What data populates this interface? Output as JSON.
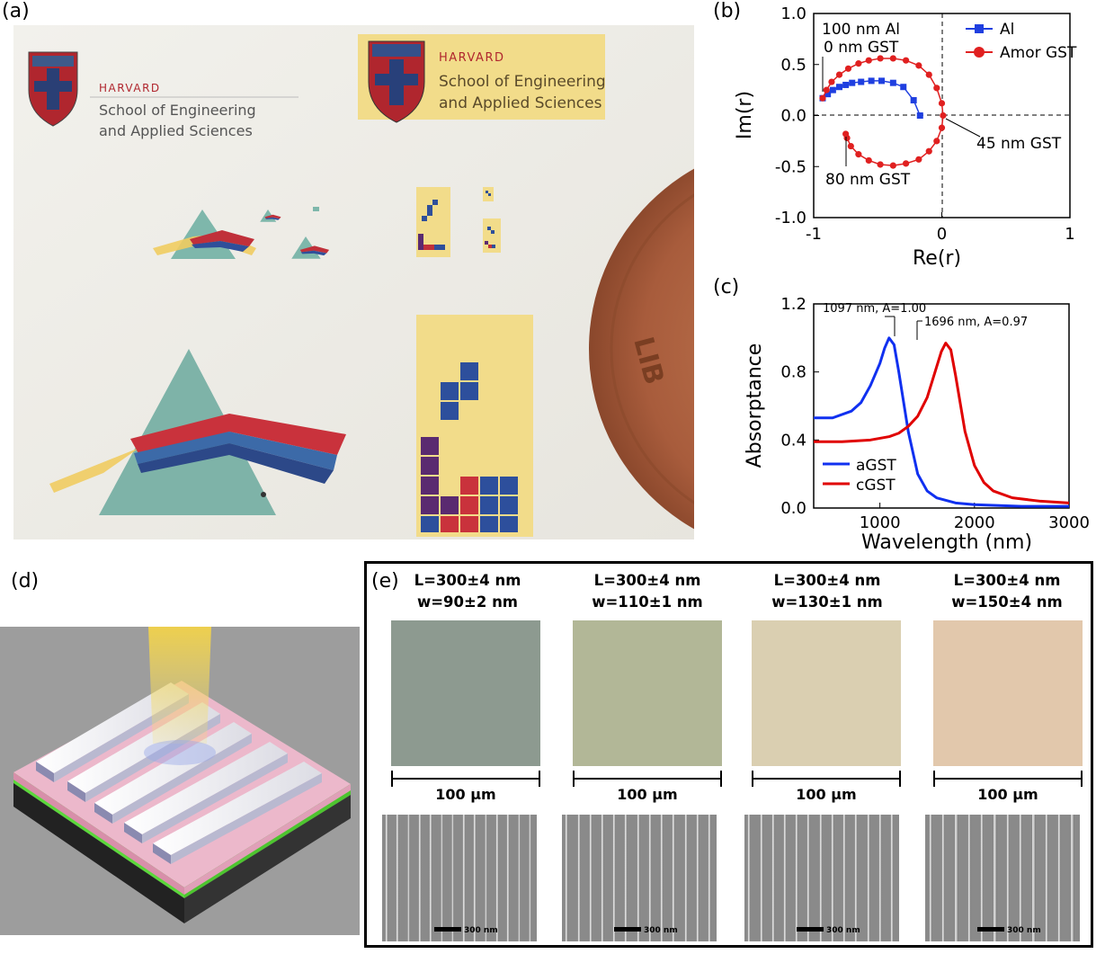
{
  "panels": {
    "a": {
      "label": "(a)"
    },
    "b": {
      "label": "(b)"
    },
    "c": {
      "label": "(c)"
    },
    "d": {
      "label": "(d)"
    },
    "e": {
      "label": "(e)"
    }
  },
  "photo_a": {
    "logo_small": {
      "harvard": "HARVARD",
      "line1": "School of Engineering",
      "line2": "and Applied Sciences"
    },
    "logo_large": {
      "harvard": "HARVARD",
      "line1": "School of Engineering",
      "line2": "and Applied Sciences"
    },
    "coin_text": "LIB"
  },
  "chart_data": [
    {
      "type": "line",
      "panel": "b",
      "xlabel": "Re(r)",
      "ylabel": "Im(r)",
      "xlim": [
        -1,
        1
      ],
      "ylim": [
        -1.0,
        1.0
      ],
      "xticks": [
        "-1",
        "0",
        "1"
      ],
      "yticks": [
        "1.0",
        "0.5",
        "0.0",
        "-0.5",
        "-1.0"
      ],
      "legend_position": "top-right",
      "series": [
        {
          "name": "Al",
          "color": "#1f3fe0",
          "marker": "square",
          "points": [
            [
              -0.93,
              0.17
            ],
            [
              -0.89,
              0.21
            ],
            [
              -0.85,
              0.25
            ],
            [
              -0.8,
              0.28
            ],
            [
              -0.75,
              0.3
            ],
            [
              -0.7,
              0.32
            ],
            [
              -0.63,
              0.33
            ],
            [
              -0.55,
              0.34
            ],
            [
              -0.47,
              0.34
            ],
            [
              -0.38,
              0.32
            ],
            [
              -0.3,
              0.28
            ],
            [
              -0.22,
              0.15
            ],
            [
              -0.17,
              0.0
            ]
          ]
        },
        {
          "name": "Amor GST",
          "color": "#e02020",
          "marker": "circle",
          "points": [
            [
              -0.93,
              0.17
            ],
            [
              -0.9,
              0.25
            ],
            [
              -0.86,
              0.33
            ],
            [
              -0.8,
              0.4
            ],
            [
              -0.73,
              0.46
            ],
            [
              -0.65,
              0.51
            ],
            [
              -0.57,
              0.54
            ],
            [
              -0.48,
              0.56
            ],
            [
              -0.38,
              0.56
            ],
            [
              -0.28,
              0.54
            ],
            [
              -0.18,
              0.49
            ],
            [
              -0.1,
              0.4
            ],
            [
              -0.04,
              0.27
            ],
            [
              0.0,
              0.12
            ],
            [
              0.01,
              0.0
            ],
            [
              0.0,
              -0.12
            ],
            [
              -0.04,
              -0.25
            ],
            [
              -0.1,
              -0.35
            ],
            [
              -0.18,
              -0.43
            ],
            [
              -0.28,
              -0.47
            ],
            [
              -0.38,
              -0.49
            ],
            [
              -0.48,
              -0.48
            ],
            [
              -0.57,
              -0.44
            ],
            [
              -0.65,
              -0.38
            ],
            [
              -0.71,
              -0.3
            ],
            [
              -0.74,
              -0.22
            ],
            [
              -0.75,
              -0.18
            ]
          ]
        }
      ],
      "annotations": [
        "100 nm Al",
        "0 nm GST",
        "45 nm GST",
        "80 nm GST"
      ]
    },
    {
      "type": "line",
      "panel": "c",
      "xlabel": "Wavelength (nm)",
      "ylabel": "Absorptance",
      "xlim": [
        300,
        3000
      ],
      "ylim": [
        0.0,
        1.2
      ],
      "xticks": [
        "1000",
        "2000",
        "3000"
      ],
      "yticks": [
        "1.2",
        "0.8",
        "0.4",
        "0.0"
      ],
      "legend_position": "bottom-left",
      "series": [
        {
          "name": "aGST",
          "color": "#1030f0",
          "x": [
            300,
            500,
            700,
            800,
            900,
            1000,
            1050,
            1097,
            1150,
            1200,
            1300,
            1400,
            1500,
            1600,
            1800,
            2000,
            2500,
            3000
          ],
          "y": [
            0.53,
            0.53,
            0.57,
            0.62,
            0.72,
            0.85,
            0.94,
            1.0,
            0.96,
            0.8,
            0.45,
            0.2,
            0.1,
            0.06,
            0.03,
            0.02,
            0.01,
            0.01
          ]
        },
        {
          "name": "cGST",
          "color": "#e00000",
          "x": [
            300,
            600,
            900,
            1100,
            1200,
            1300,
            1400,
            1500,
            1600,
            1650,
            1696,
            1750,
            1800,
            1900,
            2000,
            2100,
            2200,
            2400,
            2700,
            3000
          ],
          "y": [
            0.39,
            0.39,
            0.4,
            0.42,
            0.44,
            0.48,
            0.54,
            0.65,
            0.83,
            0.92,
            0.97,
            0.93,
            0.78,
            0.45,
            0.25,
            0.15,
            0.1,
            0.06,
            0.04,
            0.03
          ]
        }
      ],
      "annotations": [
        "1097 nm, A=1.00",
        "1696 nm, A=0.97"
      ]
    }
  ],
  "panel_e": {
    "samples": [
      {
        "L": "L=300±4 nm",
        "w": "w=90±2 nm",
        "color": "#8d9a90",
        "scale": "100 µm",
        "sem_scale": "300 nm"
      },
      {
        "L": "L=300±4 nm",
        "w": "w=110±1 nm",
        "color": "#b2b797",
        "scale": "100 µm",
        "sem_scale": "300 nm"
      },
      {
        "L": "L=300±4 nm",
        "w": "w=130±1 nm",
        "color": "#dacfb1",
        "scale": "100 µm",
        "sem_scale": "300 nm"
      },
      {
        "L": "L=300±4 nm",
        "w": "w=150±4 nm",
        "color": "#e2c8ac",
        "scale": "100 µm",
        "sem_scale": "300 nm"
      }
    ]
  }
}
